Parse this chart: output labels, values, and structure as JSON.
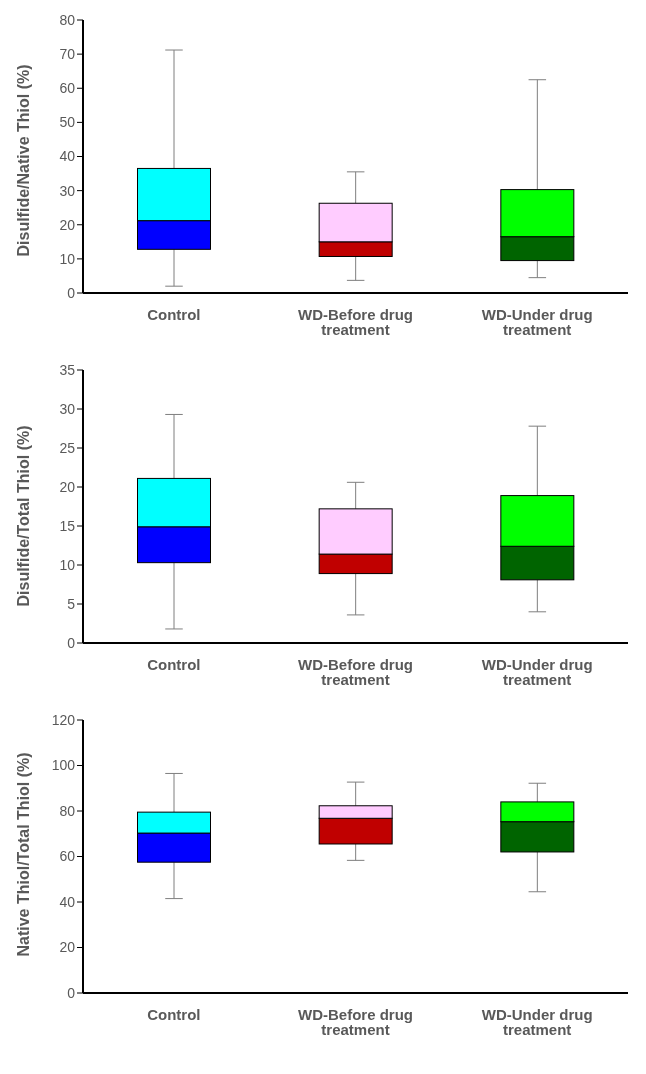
{
  "chart_data": [
    {
      "type": "box",
      "ylabel": "Disulfide/Native Thiol (%)",
      "categories": [
        "Control",
        "WD-Before drug treatment",
        "WD-Under drug treatment"
      ],
      "ylim": [
        0,
        80
      ],
      "yticks": [
        0,
        10,
        20,
        30,
        40,
        50,
        60,
        70,
        80
      ],
      "grid": false,
      "series": [
        {
          "colors": [
            [
              "#0000ff",
              "#00ffff"
            ],
            [
              "#c00000",
              "#ffccff"
            ],
            [
              "#006400",
              "#00ff00"
            ]
          ],
          "boxes": [
            {
              "low": 2,
              "q1": 12.8,
              "median": 21.2,
              "q3": 36.5,
              "high": 71.2
            },
            {
              "low": 3.7,
              "q1": 10.7,
              "median": 15,
              "q3": 26.3,
              "high": 35.5
            },
            {
              "low": 4.5,
              "q1": 9.5,
              "median": 16.5,
              "q3": 30.3,
              "high": 62.5
            }
          ]
        }
      ]
    },
    {
      "type": "box",
      "ylabel": "Disulfide/Total Thiol (%)",
      "categories": [
        "Control",
        "WD-Before drug treatment",
        "WD-Under drug treatment"
      ],
      "ylim": [
        0,
        35
      ],
      "yticks": [
        0,
        5,
        10,
        15,
        20,
        25,
        30,
        35
      ],
      "grid": false,
      "series": [
        {
          "colors": [
            [
              "#0000ff",
              "#00ffff"
            ],
            [
              "#c00000",
              "#ffccff"
            ],
            [
              "#006400",
              "#00ff00"
            ]
          ],
          "boxes": [
            {
              "low": 1.8,
              "q1": 10.3,
              "median": 14.9,
              "q3": 21.1,
              "high": 29.3
            },
            {
              "low": 3.6,
              "q1": 8.9,
              "median": 11.4,
              "q3": 17.2,
              "high": 20.6
            },
            {
              "low": 4,
              "q1": 8.1,
              "median": 12.4,
              "q3": 18.9,
              "high": 27.8
            }
          ]
        }
      ]
    },
    {
      "type": "box",
      "ylabel": "Native Thiol/Total Thiol (%)",
      "categories": [
        "Control",
        "WD-Before drug treatment",
        "WD-Under drug treatment"
      ],
      "ylim": [
        0,
        120
      ],
      "yticks": [
        0,
        20,
        40,
        60,
        80,
        100,
        120
      ],
      "grid": false,
      "series": [
        {
          "colors": [
            [
              "#0000ff",
              "#00ffff"
            ],
            [
              "#c00000",
              "#ffccff"
            ],
            [
              "#006400",
              "#00ff00"
            ]
          ],
          "boxes": [
            {
              "low": 41.5,
              "q1": 57.5,
              "median": 70.3,
              "q3": 79.5,
              "high": 96.5
            },
            {
              "low": 58.3,
              "q1": 65.5,
              "median": 76.8,
              "q3": 82.3,
              "high": 92.7
            },
            {
              "low": 44.5,
              "q1": 62,
              "median": 75.3,
              "q3": 84,
              "high": 92.2
            }
          ]
        }
      ]
    }
  ]
}
